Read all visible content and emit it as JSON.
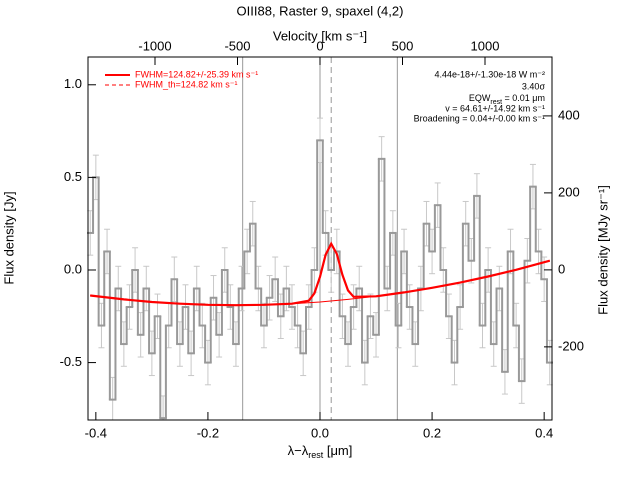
{
  "chart_data": {
    "type": "step",
    "title": "OIII88, Raster 9, spaxel (4,2)",
    "xlabel": {
      "main": "λ−λ",
      "sub": "rest",
      "after": " [μm]"
    },
    "x2label": "Velocity [km s⁻¹]",
    "ylabel": "Flux density [Jy]",
    "y2label": "Flux density [MJy sr⁻¹]",
    "xlim": [
      -0.414,
      0.414
    ],
    "xticks": [
      -0.4,
      -0.2,
      {
        "value": 0,
        "label": "0.0"
      },
      0.2,
      0.4
    ],
    "x2lim": [
      -1406,
      1406
    ],
    "x2ticks": [
      -1000,
      -500,
      0,
      500,
      1000
    ],
    "ylim": [
      -0.81,
      1.15
    ],
    "yticks": [
      -0.5,
      {
        "value": 0,
        "label": "0.0"
      },
      0.5,
      {
        "value": 1,
        "label": "1.0"
      }
    ],
    "y2lim": [
      -390,
      553
    ],
    "y2ticks": [
      -200,
      0,
      200,
      400
    ],
    "vlines": [
      -0.138,
      0,
      0.138
    ],
    "vline_dashed": 0.02,
    "series": [
      {
        "name": "spectrum",
        "color": "#999999",
        "error": 0.12,
        "x": [
          -0.41,
          -0.4,
          -0.39,
          -0.38,
          -0.37,
          -0.36,
          -0.35,
          -0.34,
          -0.33,
          -0.32,
          -0.31,
          -0.3,
          -0.29,
          -0.28,
          -0.27,
          -0.26,
          -0.25,
          -0.24,
          -0.23,
          -0.22,
          -0.21,
          -0.2,
          -0.19,
          -0.18,
          -0.17,
          -0.16,
          -0.15,
          -0.14,
          -0.13,
          -0.12,
          -0.11,
          -0.1,
          -0.09,
          -0.08,
          -0.07,
          -0.06,
          -0.05,
          -0.04,
          -0.03,
          -0.02,
          -0.01,
          0.0,
          0.01,
          0.02,
          0.03,
          0.04,
          0.05,
          0.06,
          0.07,
          0.08,
          0.09,
          0.1,
          0.11,
          0.12,
          0.13,
          0.14,
          0.15,
          0.16,
          0.17,
          0.18,
          0.19,
          0.2,
          0.21,
          0.22,
          0.23,
          0.24,
          0.25,
          0.26,
          0.27,
          0.28,
          0.29,
          0.3,
          0.31,
          0.32,
          0.33,
          0.34,
          0.35,
          0.36,
          0.37,
          0.38,
          0.39,
          0.4,
          0.41
        ],
        "values": [
          0.2,
          0.5,
          -0.3,
          0.1,
          -0.7,
          -0.1,
          -0.4,
          -0.2,
          0.0,
          -0.35,
          -0.1,
          -0.45,
          -0.25,
          -0.8,
          -0.3,
          -0.05,
          -0.4,
          -0.2,
          -0.45,
          -0.1,
          -0.3,
          -0.5,
          -0.15,
          -0.35,
          0.0,
          -0.2,
          -0.4,
          -0.1,
          0.1,
          0.25,
          -0.1,
          -0.3,
          -0.15,
          -0.05,
          -0.25,
          -0.1,
          -0.2,
          -0.3,
          -0.45,
          -0.2,
          0.0,
          0.7,
          0.2,
          0.0,
          0.1,
          -0.25,
          -0.4,
          -0.2,
          -0.1,
          -0.5,
          -0.25,
          -0.35,
          0.6,
          -0.1,
          0.2,
          -0.3,
          0.1,
          -0.2,
          -0.4,
          -0.1,
          0.25,
          0.1,
          0.35,
          0.0,
          -0.25,
          -0.5,
          -0.2,
          0.25,
          0.05,
          0.4,
          -0.3,
          0.0,
          -0.4,
          -0.1,
          -0.55,
          0.1,
          -0.3,
          -0.6,
          0.05,
          0.45,
          0.1,
          -0.05,
          -0.5
        ]
      },
      {
        "name": "FWHM=124.82+/-25.39 km s⁻¹",
        "color": "#ff0000",
        "dash": false,
        "x": [
          -0.41,
          -0.35,
          -0.3,
          -0.25,
          -0.2,
          -0.15,
          -0.1,
          -0.05,
          -0.02,
          -0.01,
          0,
          0.01,
          0.02,
          0.03,
          0.04,
          0.05,
          0.06,
          0.1,
          0.15,
          0.2,
          0.25,
          0.3,
          0.35,
          0.41
        ],
        "values": [
          -0.138,
          -0.159,
          -0.173,
          -0.182,
          -0.188,
          -0.19,
          -0.188,
          -0.182,
          -0.166,
          -0.126,
          -0.037,
          0.082,
          0.142,
          0.087,
          -0.026,
          -0.11,
          -0.145,
          -0.142,
          -0.121,
          -0.096,
          -0.068,
          -0.035,
          0.001,
          0.05
        ]
      },
      {
        "name": "FWHM_th=124.82 km s⁻¹",
        "color": "#ff0000",
        "dash": true,
        "x": [
          -0.41,
          -0.35,
          -0.3,
          -0.25,
          -0.2,
          -0.15,
          -0.1,
          -0.05,
          0,
          0.05,
          0.1,
          0.15,
          0.2,
          0.25,
          0.3,
          0.35,
          0.41
        ],
        "values": [
          -0.138,
          -0.159,
          -0.173,
          -0.182,
          -0.188,
          -0.19,
          -0.188,
          -0.182,
          -0.173,
          -0.159,
          -0.142,
          -0.121,
          -0.096,
          -0.068,
          -0.035,
          0.001,
          0.05
        ]
      }
    ],
    "annotations": [
      "4.44e-18+/-1.30e-18 W m⁻²",
      "3.40σ"
    ],
    "eqw": {
      "main": "EQW",
      "sub": "rest",
      "after": " = 0.01 μm"
    },
    "annotations2": [
      "v = 64.61+/-14.92 km s⁻¹",
      "Broadening = 0.04+/-0.00 km s⁻¹"
    ]
  }
}
